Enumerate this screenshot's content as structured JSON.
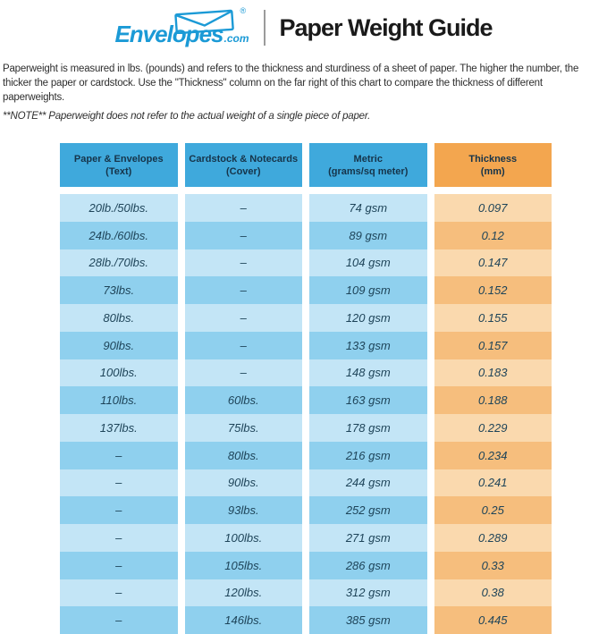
{
  "header": {
    "logo": {
      "name": "Envelopes",
      "tld": ".com",
      "registered": "®"
    },
    "title": "Paper Weight Guide"
  },
  "intro": {
    "paragraph": "Paperweight is measured in lbs. (pounds) and refers to the thickness and sturdiness of a sheet of paper. The higher the number, the thicker the paper or cardstock. Use the \"Thickness\" column on the far right of this chart to compare the thickness of different paperweights.",
    "note": "**NOTE** Paperweight does not refer to the actual weight of a single piece of paper."
  },
  "table": {
    "columns": [
      {
        "label": "Paper & Envelopes",
        "sub": "(Text)"
      },
      {
        "label": "Cardstock & Notecards",
        "sub": "(Cover)"
      },
      {
        "label": "Metric",
        "sub": "(grams/sq meter)"
      },
      {
        "label": "Thickness",
        "sub": "(mm)"
      }
    ]
  },
  "chart_data": {
    "type": "table",
    "title": "Paper Weight Guide",
    "columns": [
      "Paper & Envelopes (Text)",
      "Cardstock & Notecards (Cover)",
      "Metric (grams/sq meter)",
      "Thickness (mm)"
    ],
    "rows": [
      [
        "20lb./50lbs.",
        "–",
        "74 gsm",
        "0.097"
      ],
      [
        "24lb./60lbs.",
        "–",
        "89 gsm",
        "0.12"
      ],
      [
        "28lb./70lbs.",
        "–",
        "104 gsm",
        "0.147"
      ],
      [
        "73lbs.",
        "–",
        "109 gsm",
        "0.152"
      ],
      [
        "80lbs.",
        "–",
        "120 gsm",
        "0.155"
      ],
      [
        "90lbs.",
        "–",
        "133 gsm",
        "0.157"
      ],
      [
        "100lbs.",
        "–",
        "148 gsm",
        "0.183"
      ],
      [
        "110lbs.",
        "60lbs.",
        "163 gsm",
        "0.188"
      ],
      [
        "137lbs.",
        "75lbs.",
        "178 gsm",
        "0.229"
      ],
      [
        "–",
        "80lbs.",
        "216 gsm",
        "0.234"
      ],
      [
        "–",
        "90lbs.",
        "244 gsm",
        "0.241"
      ],
      [
        "–",
        "93lbs.",
        "252 gsm",
        "0.25"
      ],
      [
        "–",
        "100lbs.",
        "271 gsm",
        "0.289"
      ],
      [
        "–",
        "105lbs.",
        "286 gsm",
        "0.33"
      ],
      [
        "–",
        "120lbs.",
        "312 gsm",
        "0.38"
      ],
      [
        "–",
        "146lbs.",
        "385 gsm",
        "0.445"
      ]
    ]
  },
  "colors": {
    "brand_blue": "#1b9ad6",
    "head_blue": "#3fa9dc",
    "head_orange": "#f3a64f",
    "row_blue": "#c3e5f6",
    "row_blue_alt": "#8fd0ee",
    "row_orange": "#fad9ae",
    "row_orange_alt": "#f6be7d",
    "cell_text": "#1e4459",
    "head_text": "#16344a",
    "body_text": "#2e2e2e",
    "title_ink": "#1a1a1a",
    "divider_gray": "#9b9b9b"
  }
}
